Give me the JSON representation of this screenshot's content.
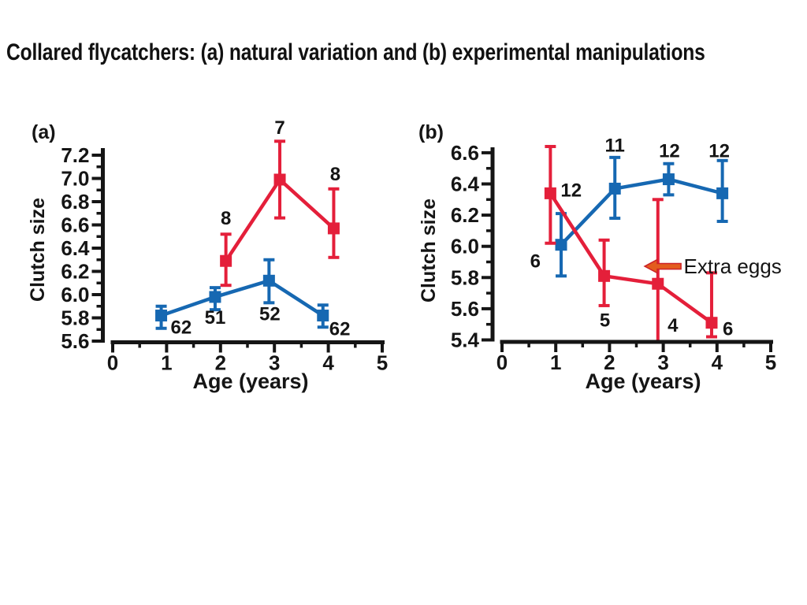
{
  "title": "Collared flycatchers: (a) natural variation and (b) experimental manipulations",
  "colors": {
    "red": "#e41f3a",
    "blue": "#1668b2",
    "axis": "#151515",
    "text": "#151515",
    "arrow_fill": "#e35c1e",
    "arrow_stroke": "#cc2127"
  },
  "chart_data": [
    {
      "type": "line",
      "panel_label": "(a)",
      "xlabel": "Age (years)",
      "ylabel": "Clutch size",
      "xlim": [
        0,
        5
      ],
      "ylim": [
        5.6,
        7.2
      ],
      "x_tick_step": 1,
      "x_minor_step": 0.5,
      "y_tick_step": 0.2,
      "y_minor_step": 0.1,
      "series": [
        {
          "name": "blue-series",
          "color": "blue",
          "points": [
            {
              "x": 0.9,
              "y": 5.82,
              "lo": 5.71,
              "hi": 5.9,
              "n": "62",
              "dx": 12,
              "dy": 23,
              "anchor": "start"
            },
            {
              "x": 1.9,
              "y": 5.98,
              "lo": 5.87,
              "hi": 6.06,
              "n": "51",
              "dx": 0,
              "dy": 34
            },
            {
              "x": 2.9,
              "y": 6.12,
              "lo": 5.93,
              "hi": 6.3,
              "n": "52",
              "dx": 1,
              "dy": 50
            },
            {
              "x": 3.9,
              "y": 5.82,
              "lo": 5.72,
              "hi": 5.91,
              "n": "62",
              "dx": 8,
              "dy": 25,
              "anchor": "start"
            }
          ]
        },
        {
          "name": "red-series",
          "color": "red",
          "points": [
            {
              "x": 2.1,
              "y": 6.29,
              "lo": 6.08,
              "hi": 6.52,
              "n": "8",
              "dx": 0,
              "dy": -46
            },
            {
              "x": 3.1,
              "y": 6.99,
              "lo": 6.66,
              "hi": 7.32,
              "n": "7",
              "dx": 0,
              "dy": -58
            },
            {
              "x": 4.1,
              "y": 6.57,
              "lo": 6.32,
              "hi": 6.91,
              "n": "8",
              "dx": 2,
              "dy": -61
            }
          ]
        }
      ]
    },
    {
      "type": "line",
      "panel_label": "(b)",
      "xlabel": "Age (years)",
      "ylabel": "Clutch size",
      "xlim": [
        0,
        5
      ],
      "ylim": [
        5.4,
        6.6
      ],
      "x_tick_step": 1,
      "x_minor_step": 0.5,
      "y_tick_step": 0.2,
      "y_minor_step": 0.1,
      "series": [
        {
          "name": "blue-series",
          "color": "blue",
          "points": [
            {
              "x": 1.1,
              "y": 6.01,
              "lo": 5.81,
              "hi": 6.21,
              "n": "6",
              "dx": -26,
              "dy": 29,
              "anchor": "end"
            },
            {
              "x": 2.1,
              "y": 6.37,
              "lo": 6.18,
              "hi": 6.57,
              "n": "11",
              "dx": 0,
              "dy": -47
            },
            {
              "x": 3.1,
              "y": 6.43,
              "lo": 6.33,
              "hi": 6.53,
              "n": "12",
              "dx": 1,
              "dy": -28
            },
            {
              "x": 4.1,
              "y": 6.34,
              "lo": 6.16,
              "hi": 6.55,
              "n": "12",
              "dx": -4,
              "dy": -46
            }
          ]
        },
        {
          "name": "red-series",
          "color": "red",
          "points": [
            {
              "x": 0.9,
              "y": 6.34,
              "lo": 6.02,
              "hi": 6.64,
              "n": "12",
              "dx": 13,
              "dy": 4,
              "anchor": "start"
            },
            {
              "x": 1.9,
              "y": 5.81,
              "lo": 5.62,
              "hi": 6.04,
              "n": "5",
              "dx": 1,
              "dy": 64
            },
            {
              "x": 2.9,
              "y": 5.76,
              "lo": 5.4,
              "hi": 6.3,
              "n": "4",
              "dx": 19,
              "dy": 61,
              "cap_lo": false
            },
            {
              "x": 3.9,
              "y": 5.51,
              "lo": 5.42,
              "hi": 5.83,
              "n": "6",
              "dx": 14,
              "dy": 16,
              "anchor": "start"
            }
          ]
        }
      ],
      "annotation": {
        "label": "Extra eggs",
        "arrow": {
          "tip_x": 2.654,
          "tip_y": 5.872,
          "tail_x": 3.33
        },
        "label_x": 3.38,
        "label_y": 5.827
      }
    }
  ]
}
